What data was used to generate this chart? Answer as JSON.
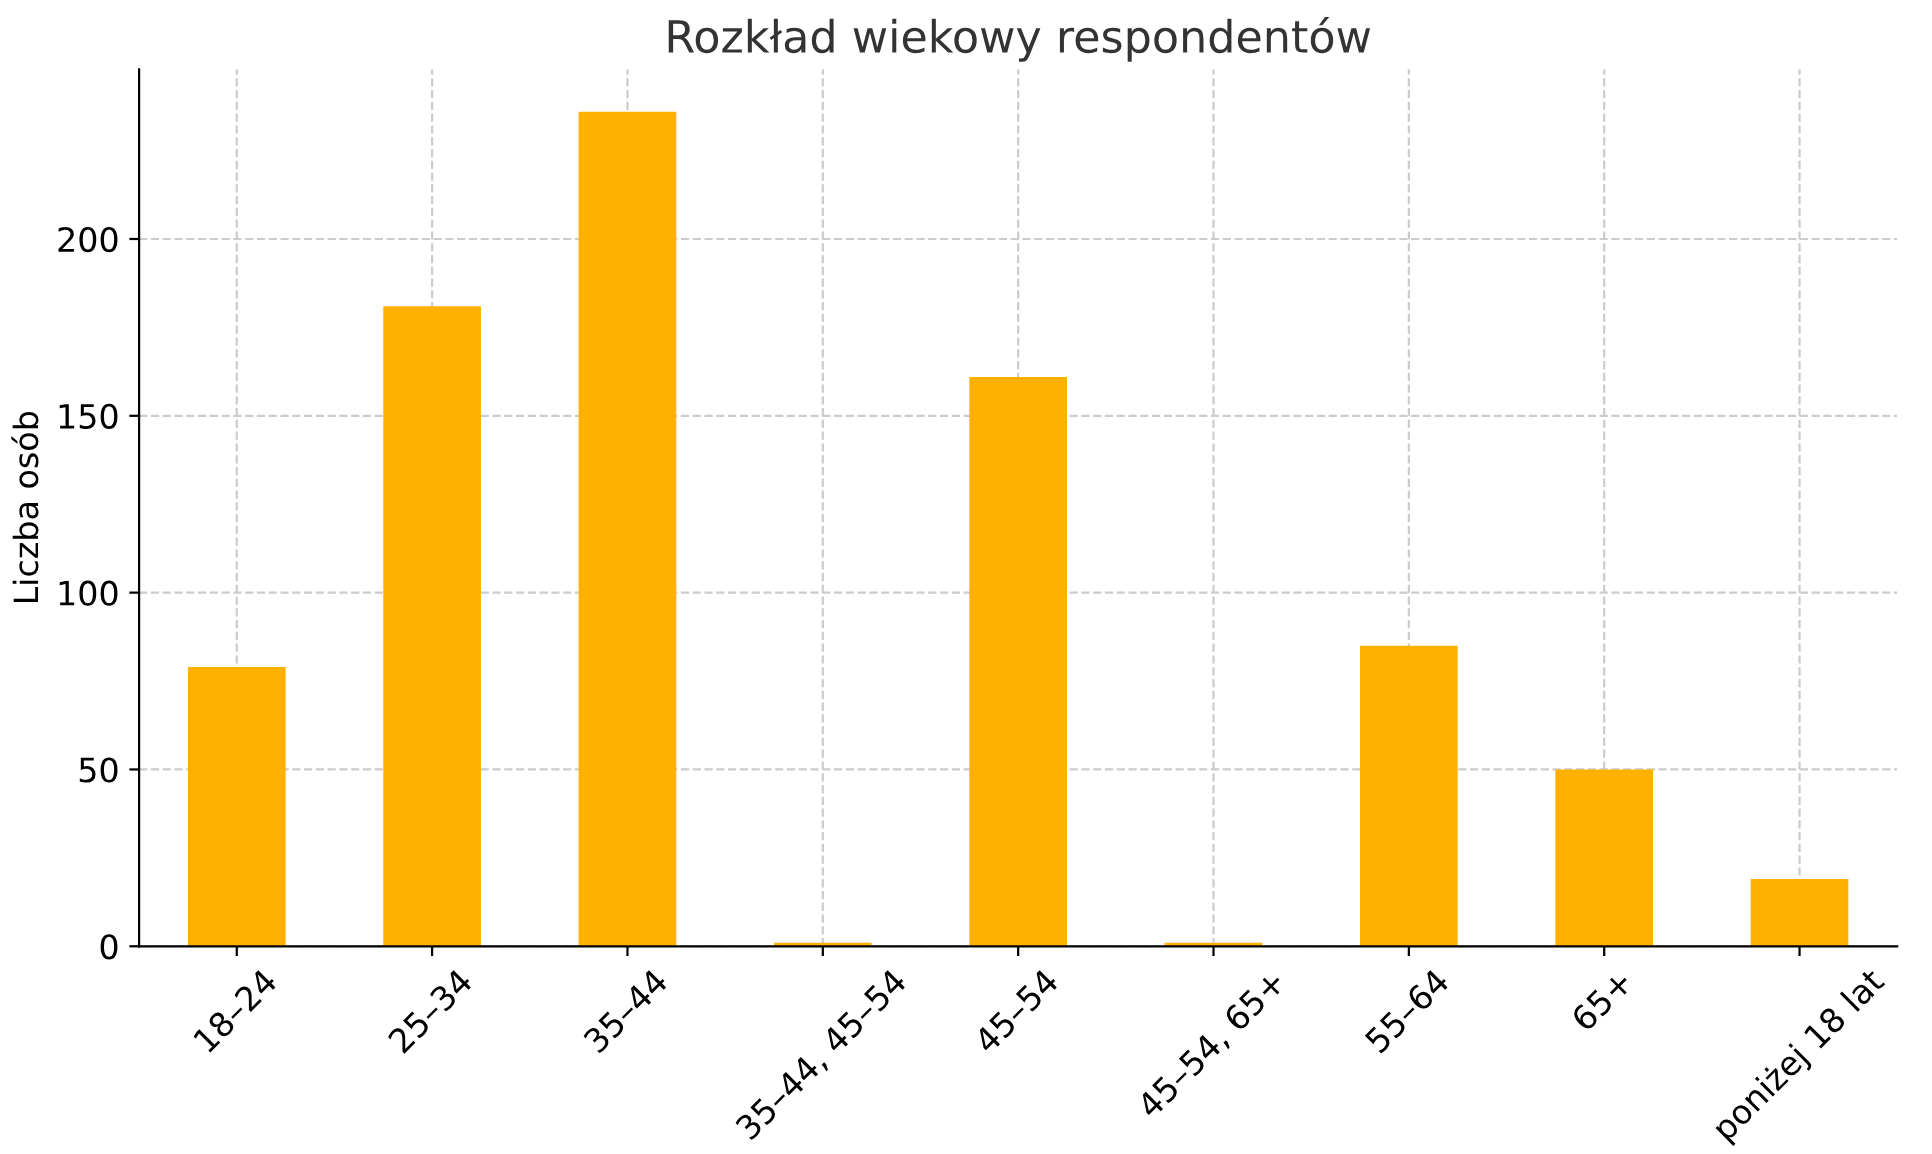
{
  "chart_data": {
    "type": "bar",
    "title": "Rozkład wiekowy respondentów",
    "ylabel": "Liczba osób",
    "categories": [
      "18–24",
      "25–34",
      "35–44",
      "35–44, 45–54",
      "45–54",
      "45–54, 65+",
      "55–64",
      "65+",
      "poniżej 18 lat"
    ],
    "values": [
      79,
      181,
      236,
      1,
      161,
      1,
      85,
      50,
      19
    ],
    "color": "#ffb000",
    "ylim": [
      0,
      248
    ],
    "yticks": [
      0,
      50,
      100,
      150,
      200
    ],
    "grid": true
  }
}
